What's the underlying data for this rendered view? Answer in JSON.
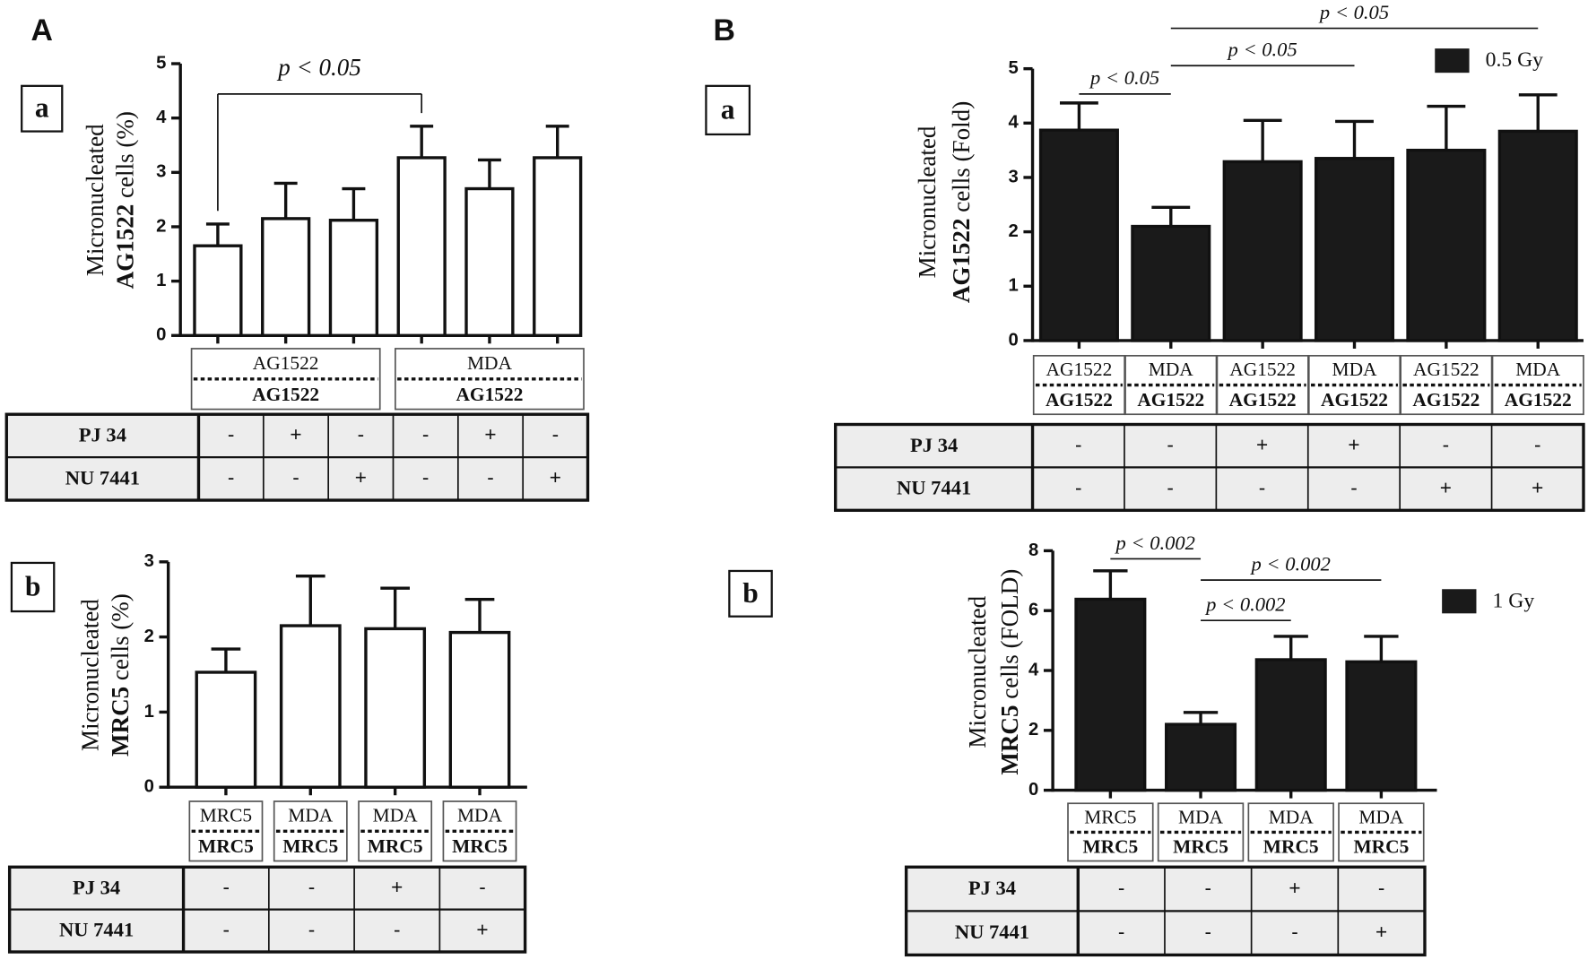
{
  "panels": {
    "A": "A",
    "B": "B"
  },
  "chart_data": [
    {
      "type": "bar",
      "panel_label": "a",
      "ylabel": "Micronucleated",
      "ylabel_bold": "AG1522",
      "ylabel_suffix": "cells (%)",
      "ylim": [
        0,
        5
      ],
      "yticks": [
        0,
        1,
        2,
        3,
        4,
        5
      ],
      "series": [
        {
          "color": "#ffffff",
          "values": [
            1.65,
            2.15,
            2.12,
            3.27,
            2.7,
            3.27
          ],
          "errors": [
            0.4,
            0.65,
            0.58,
            0.58,
            0.53,
            0.58
          ]
        }
      ],
      "groups": [
        {
          "top": "AG1522",
          "bottom": "AG1522"
        },
        {
          "top": "MDA",
          "bottom": "AG1522"
        }
      ],
      "treatments": [
        {
          "name": "PJ 34",
          "values": [
            "-",
            "+",
            "-",
            "-",
            "+",
            "-"
          ]
        },
        {
          "name": "NU 7441",
          "values": [
            "-",
            "-",
            "+",
            "-",
            "-",
            "+"
          ]
        }
      ],
      "annotation_style": "bracket",
      "annotations": [
        {
          "text": "p < 0.05",
          "from": 0,
          "to": 3
        }
      ]
    },
    {
      "type": "bar",
      "panel_label": "b",
      "ylabel": "Micronucleated",
      "ylabel_bold": "MRC5",
      "ylabel_suffix": "cells (%)",
      "ylim": [
        0,
        3
      ],
      "yticks": [
        0,
        1,
        2,
        3
      ],
      "series": [
        {
          "color": "#ffffff",
          "values": [
            1.53,
            2.15,
            2.11,
            2.06
          ],
          "errors": [
            0.31,
            0.66,
            0.54,
            0.44
          ]
        }
      ],
      "groups": [
        {
          "top": "MRC5",
          "bottom": "MRC5"
        },
        {
          "top": "MDA",
          "bottom": "MRC5"
        },
        {
          "top": "MDA",
          "bottom": "MRC5"
        },
        {
          "top": "MDA",
          "bottom": "MRC5"
        }
      ],
      "treatments": [
        {
          "name": "PJ 34",
          "values": [
            "-",
            "-",
            "+",
            "-"
          ]
        },
        {
          "name": "NU 7441",
          "values": [
            "-",
            "-",
            "-",
            "+"
          ]
        }
      ],
      "annotation_style": "line",
      "annotations": []
    },
    {
      "type": "bar",
      "panel_label": "a",
      "ylabel": "Micronucleated",
      "ylabel_bold": "AG1522",
      "ylabel_suffix": "cells (Fold)",
      "ylim": [
        0,
        5
      ],
      "yticks": [
        0,
        1,
        2,
        3,
        4,
        5
      ],
      "series": [
        {
          "name": "0.5 Gy",
          "color": "#1a1a1a",
          "values": [
            3.87,
            2.1,
            3.29,
            3.35,
            3.5,
            3.85
          ],
          "errors": [
            0.5,
            0.35,
            0.76,
            0.68,
            0.81,
            0.67
          ]
        }
      ],
      "groups": [
        {
          "top": "AG1522",
          "bottom": "AG1522"
        },
        {
          "top": "MDA",
          "bottom": "AG1522"
        },
        {
          "top": "AG1522",
          "bottom": "AG1522"
        },
        {
          "top": "MDA",
          "bottom": "AG1522"
        },
        {
          "top": "AG1522",
          "bottom": "AG1522"
        },
        {
          "top": "MDA",
          "bottom": "AG1522"
        }
      ],
      "treatments": [
        {
          "name": "PJ 34",
          "values": [
            "-",
            "-",
            "+",
            "+",
            "-",
            "-"
          ]
        },
        {
          "name": "NU 7441",
          "values": [
            "-",
            "-",
            "-",
            "-",
            "+",
            "+"
          ]
        }
      ],
      "annotation_style": "line",
      "annotations": [
        {
          "text": "p < 0.05",
          "from": 0,
          "to": 1
        },
        {
          "text": "p < 0.05",
          "from": 1,
          "to": 3
        },
        {
          "text": "p < 0.05",
          "from": 1,
          "to": 5
        }
      ]
    },
    {
      "type": "bar",
      "panel_label": "b",
      "ylabel": "Micronucleated",
      "ylabel_bold": "MRC5",
      "ylabel_suffix": "cells (FOLD)",
      "ylim": [
        0,
        8
      ],
      "yticks": [
        0,
        2,
        4,
        6,
        8
      ],
      "series": [
        {
          "name": "1 Gy",
          "color": "#1a1a1a",
          "values": [
            6.38,
            2.2,
            4.36,
            4.29
          ],
          "errors": [
            0.95,
            0.4,
            0.78,
            0.85
          ]
        }
      ],
      "groups": [
        {
          "top": "MRC5",
          "bottom": "MRC5"
        },
        {
          "top": "MDA",
          "bottom": "MRC5"
        },
        {
          "top": "MDA",
          "bottom": "MRC5"
        },
        {
          "top": "MDA",
          "bottom": "MRC5"
        }
      ],
      "treatments": [
        {
          "name": "PJ 34",
          "values": [
            "-",
            "-",
            "+",
            "-"
          ]
        },
        {
          "name": "NU 7441",
          "values": [
            "-",
            "-",
            "-",
            "+"
          ]
        }
      ],
      "annotation_style": "line",
      "annotations": [
        {
          "text": "p < 0.002",
          "from": 0,
          "to": 1
        },
        {
          "text": "p < 0.002",
          "from": 1,
          "to": 2
        },
        {
          "text": "p < 0.002",
          "from": 1,
          "to": 3
        }
      ]
    }
  ]
}
